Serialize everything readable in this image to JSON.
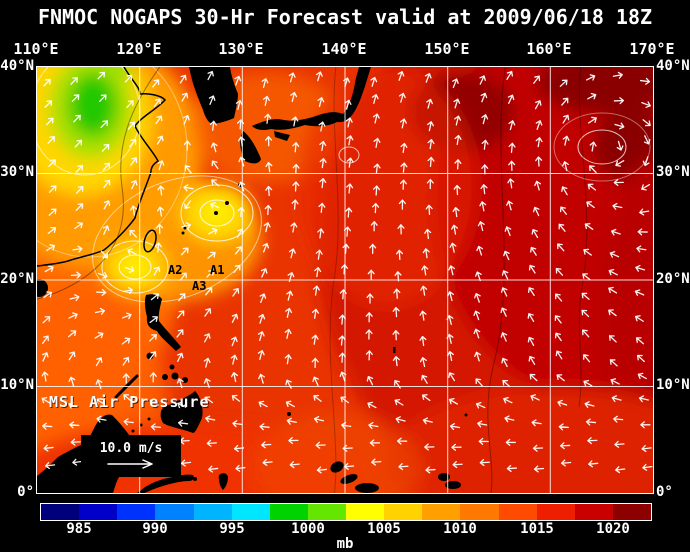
{
  "title": "FNMOC NOGAPS 30-Hr Forecast valid at 2009/06/18 18Z",
  "map": {
    "field_label": "MSL Air Pressure",
    "wind_scale_label": "10.0 m/s",
    "top_lon_labels": [
      "110°E",
      "120°E",
      "130°E",
      "140°E",
      "150°E",
      "160°E",
      "170°E"
    ],
    "left_lat_labels": [
      "40°N",
      "30°N",
      "20°N",
      "10°N",
      "0°"
    ],
    "right_lat_labels": [
      "40°N",
      "30°N",
      "20°N",
      "10°N",
      "0°"
    ],
    "storm_labels": [
      "A2",
      "A1",
      "A3"
    ]
  },
  "colorbar": {
    "unit": "mb",
    "ticks": [
      "985",
      "990",
      "995",
      "1000",
      "1005",
      "1010",
      "1015",
      "1020"
    ],
    "colors": [
      "#00007d",
      "#0000c8",
      "#0032ff",
      "#0082ff",
      "#00b4ff",
      "#00e6ff",
      "#00d200",
      "#64e600",
      "#ffff00",
      "#ffd200",
      "#ffa000",
      "#ff7800",
      "#ff4b00",
      "#f01e00",
      "#c80000",
      "#8c0000"
    ]
  },
  "chart_data": {
    "type": "heatmap",
    "title": "FNMOC NOGAPS 30-Hr Forecast valid at 2009/06/18 18Z",
    "variable": "MSL Air Pressure",
    "units": "mb",
    "x_axis": {
      "label": "longitude",
      "ticks": [
        "110°E",
        "120°E",
        "130°E",
        "140°E",
        "150°E",
        "160°E",
        "170°E"
      ]
    },
    "y_axis": {
      "label": "latitude",
      "ticks": [
        "40°N",
        "30°N",
        "20°N",
        "10°N",
        "0°"
      ]
    },
    "colorbar_ticks": [
      985,
      990,
      995,
      1000,
      1005,
      1010,
      1015,
      1020
    ],
    "wind_reference_vector_mps": 10.0,
    "annotations": [
      "A1",
      "A2",
      "A3"
    ],
    "legend_position": "bottom"
  }
}
